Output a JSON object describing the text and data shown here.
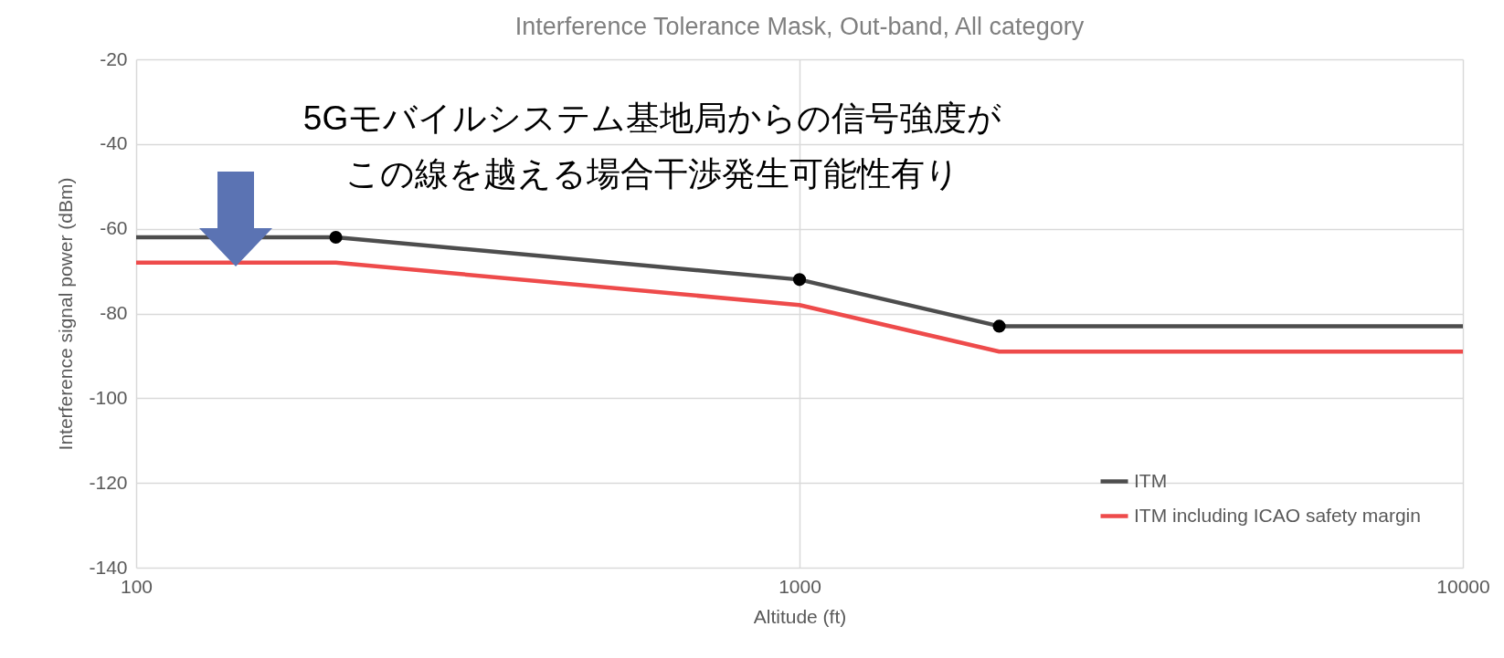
{
  "chart_data": {
    "type": "line",
    "title": "Interference Tolerance Mask, Out-band, All category",
    "xlabel": "Altitude (ft)",
    "ylabel": "Interference signal power (dBm)",
    "x": [
      100,
      200,
      1000,
      2000,
      10000
    ],
    "series": [
      {
        "name": "ITM",
        "color": "#4d4d4d",
        "values": [
          -62,
          -62,
          -72,
          -83,
          -83
        ]
      },
      {
        "name": "ITM including ICAO safety margin",
        "color": "#ee4b4b",
        "values": [
          -68,
          -68,
          -78,
          -89,
          -89
        ]
      },
      {
        "type": "scatter",
        "color": "#000000",
        "x": [
          200,
          1000,
          2000
        ],
        "values": [
          -62,
          -72,
          -83
        ],
        "marker": "circle"
      }
    ],
    "log": "x",
    "xlim": [
      100,
      10000
    ],
    "xticks": [
      100,
      1000,
      10000
    ],
    "ylim": [
      -140,
      -20
    ],
    "yticks": [
      -140,
      -120,
      -100,
      -80,
      -60,
      -40,
      -20
    ],
    "grid": true,
    "legend": "bottom right",
    "line_style": "solid",
    "annotations": [
      "5Gモバイルシステム基地局からの信号強度が",
      "この線を越える場合干渉発生可能性有り"
    ]
  }
}
